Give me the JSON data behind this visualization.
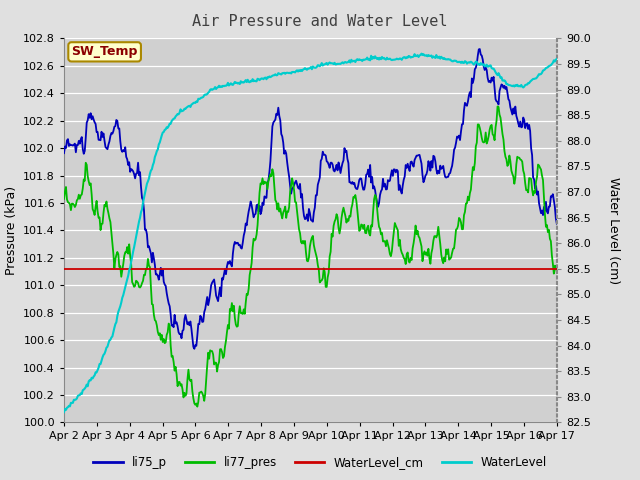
{
  "title": "Air Pressure and Water Level",
  "ylabel_left": "Pressure (kPa)",
  "ylabel_right": "Water Level (cm)",
  "ylim_left": [
    100.0,
    102.8
  ],
  "ylim_right": [
    82.5,
    90.0
  ],
  "yticks_left": [
    100.0,
    100.2,
    100.4,
    100.6,
    100.8,
    101.0,
    101.2,
    101.4,
    101.6,
    101.8,
    102.0,
    102.2,
    102.4,
    102.6,
    102.8
  ],
  "yticks_right": [
    82.5,
    83.0,
    83.5,
    84.0,
    84.5,
    85.0,
    85.5,
    86.0,
    86.5,
    87.0,
    87.5,
    88.0,
    88.5,
    89.0,
    89.5,
    90.0
  ],
  "xtick_labels": [
    "Apr 2",
    "Apr 3",
    "Apr 4",
    "Apr 5",
    "Apr 6",
    "Apr 7",
    "Apr 8",
    "Apr 9",
    "Apr 10",
    "Apr 11",
    "Apr 12",
    "Apr 13",
    "Apr 14",
    "Apr 15",
    "Apr 16",
    "Apr 17"
  ],
  "legend_labels": [
    "li75_p",
    "li77_pres",
    "WaterLevel_cm",
    "WaterLevel"
  ],
  "annotation_text": "SW_Temp",
  "fig_bg": "#e0e0e0",
  "plot_bg": "#d0d0d0",
  "li75_p_color": "#0000bb",
  "li77_pres_color": "#00bb00",
  "WaterLevel_cm_color": "#cc0000",
  "WaterLevel_color": "#00cccc",
  "n_points": 500,
  "title_fontsize": 11,
  "tick_fontsize": 8,
  "label_fontsize": 9
}
